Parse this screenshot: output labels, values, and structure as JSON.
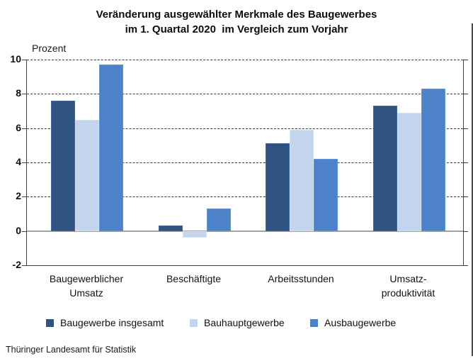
{
  "title": {
    "line1": "Veränderung ausgewählter Merkmale des Baugewerbes",
    "line2": "im 1. Quartal 2020  im Vergleich zum Vorjahr"
  },
  "axis_unit": "Prozent",
  "source": "Thüringer Landesamt für Statistik",
  "colors": {
    "background": "#ffffff",
    "frame": "#3f3f3f",
    "gridline": "#3a3a3a",
    "zero_line": "#a3a3a3",
    "series1": "#2F5380",
    "series2": "#C3D5ED",
    "series3": "#4E82C8"
  },
  "chart_data": {
    "type": "bar",
    "title": "Veränderung ausgewählter Merkmale des Baugewerbes im 1. Quartal 2020 im Vergleich zum Vorjahr",
    "ylabel": "Prozent",
    "xlabel": "",
    "ylim": [
      -2,
      10
    ],
    "yticks": [
      10,
      8,
      6,
      4,
      2,
      0,
      -2
    ],
    "grid": "horizontal-dashed",
    "legend_position": "bottom",
    "categories": [
      "Baugewerblicher Umsatz",
      "Beschäftigte",
      "Arbeitsstunden",
      "Umsatzproduktivität"
    ],
    "category_label_lines": [
      [
        "Baugewerblicher",
        "Umsatz"
      ],
      [
        "Beschäftigte"
      ],
      [
        "Arbeitsstunden"
      ],
      [
        "Umsatz-",
        "produktivität"
      ]
    ],
    "series": [
      {
        "name": "Baugewerbe insgesamt",
        "color": "#2F5380",
        "border": "#44689a",
        "values": [
          7.6,
          0.3,
          5.1,
          7.3
        ]
      },
      {
        "name": "Bauhauptgewerbe",
        "color": "#C3D5ED",
        "border": "#d6e2f4",
        "values": [
          6.5,
          -0.4,
          5.9,
          6.9
        ]
      },
      {
        "name": "Ausbaugewerbe",
        "color": "#4E82C8",
        "border": "#6794d2",
        "values": [
          9.7,
          1.3,
          4.2,
          8.3
        ]
      }
    ]
  }
}
